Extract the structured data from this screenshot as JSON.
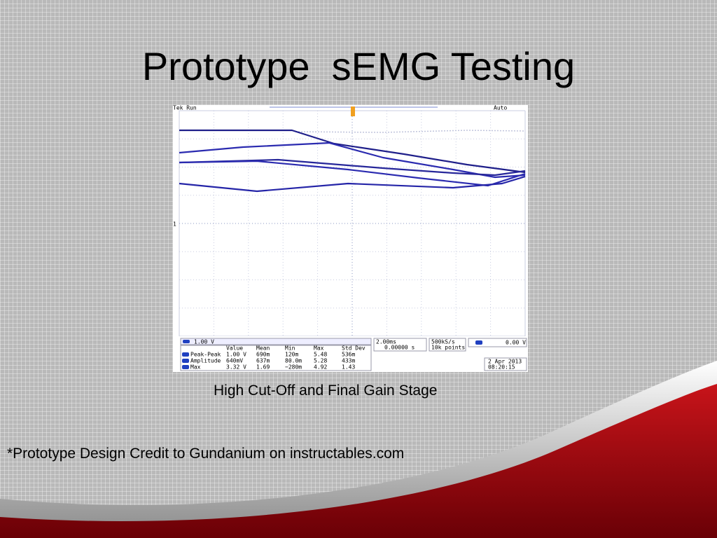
{
  "title": "Prototype  sEMG Testing",
  "scope": {
    "status": "Tek Run",
    "trigger_mode": "Auto",
    "channel_marker": "1",
    "channel_scale": "1.00 V",
    "measurements": {
      "headers": [
        "Value",
        "Mean",
        "Min",
        "Max",
        "Std Dev"
      ],
      "rows": [
        [
          "Peak-Peak",
          "1.00 V",
          "690m",
          "120m",
          "5.48",
          "536m"
        ],
        [
          "Amplitude",
          "640mV",
          "637m",
          "80.0m",
          "5.28",
          "433m"
        ],
        [
          "Max",
          "3.32 V",
          "1.69",
          "−280m",
          "4.92",
          "1.43"
        ]
      ]
    },
    "timebase": "2.00ms",
    "trigger_position": "0.00000 s",
    "sample_rate": "500kS/s",
    "record_length": "10k points",
    "trigger_level": "0.00 V",
    "date": "2 Apr 2013",
    "time": "08:20:15"
  },
  "caption": "High Cut-Off and Final Gain Stage",
  "credit": "*Prototype Design Credit to Gundanium on instructables.com"
}
